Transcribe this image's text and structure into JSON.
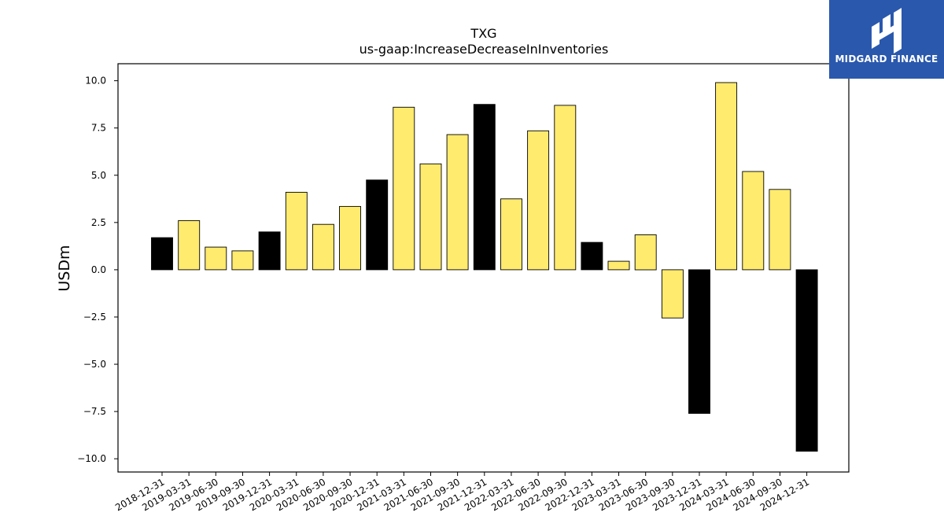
{
  "brand": {
    "name": "MIDGARD FINANCE",
    "bg_color": "#2a58ad"
  },
  "chart_data": {
    "type": "bar",
    "title": "TXG",
    "subtitle": "us-gaap:IncreaseDecreaseInInventories",
    "xlabel": "",
    "ylabel": "USDm",
    "ylim": [
      -10.7,
      10.9
    ],
    "yticks": [
      -10.0,
      -7.5,
      -5.0,
      -2.5,
      0.0,
      2.5,
      5.0,
      7.5,
      10.0
    ],
    "ytick_labels": [
      "−10.0",
      "−7.5",
      "−5.0",
      "−2.5",
      "0.0",
      "2.5",
      "5.0",
      "7.5",
      "10.0"
    ],
    "categories": [
      "2018-12-31",
      "2019-03-31",
      "2019-06-30",
      "2019-09-30",
      "2019-12-31",
      "2020-03-31",
      "2020-06-30",
      "2020-09-30",
      "2020-12-31",
      "2021-03-31",
      "2021-06-30",
      "2021-09-30",
      "2021-12-31",
      "2022-03-31",
      "2022-06-30",
      "2022-09-30",
      "2022-12-31",
      "2023-03-31",
      "2023-06-30",
      "2023-09-30",
      "2023-12-31",
      "2024-03-31",
      "2024-06-30",
      "2024-09-30",
      "2024-12-31"
    ],
    "values": [
      1.7,
      2.6,
      1.2,
      1.0,
      2.0,
      4.1,
      2.4,
      3.35,
      4.75,
      8.6,
      5.6,
      7.15,
      8.75,
      3.75,
      7.35,
      8.7,
      1.45,
      0.45,
      1.85,
      -2.55,
      -7.6,
      9.9,
      5.2,
      4.25,
      -9.6
    ],
    "colors": {
      "annual": "#000000",
      "quarterly": "#ffeb6e",
      "edge": "#000000"
    },
    "annual_flags": [
      true,
      false,
      false,
      false,
      true,
      false,
      false,
      false,
      true,
      false,
      false,
      false,
      true,
      false,
      false,
      false,
      true,
      false,
      false,
      false,
      true,
      false,
      false,
      false,
      true
    ],
    "grid": false,
    "legend": "none"
  }
}
